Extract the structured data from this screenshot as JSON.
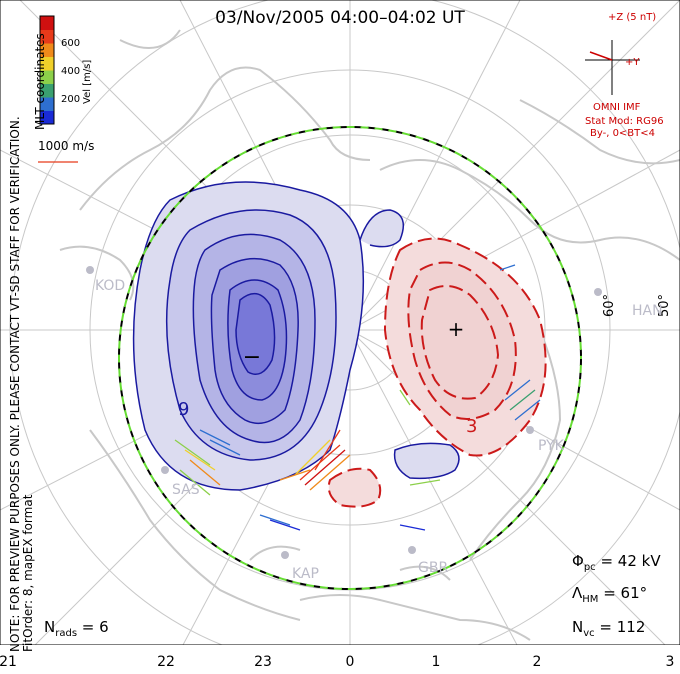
{
  "title": "03/Nov/2005 04:00–04:02 UT",
  "notice_lines": [
    "NOTE: FOR PREVIEW PURPOSES ONLY. PLEASE CONTACT VT-SD STAFF FOR VERIFICATION.",
    "FitOrder: 8, mapEX format"
  ],
  "coord_label": "MLT coordinates",
  "colorbar": {
    "label": "Vel [m/s]",
    "ticks": [
      "600",
      "400",
      "200"
    ],
    "colors": [
      "#1a2bd6",
      "#2e6fd0",
      "#3aa070",
      "#8cd04a",
      "#f0d02a",
      "#f08a1a",
      "#e83a1a",
      "#d01010"
    ]
  },
  "scale_vector_label": "1000 m/s",
  "imf": {
    "z_label": "+Z (5 nT)",
    "y_label": "+Y",
    "source": "OMNI IMF",
    "model": "Stat Mod: RG96",
    "conditions": "By-, 0<BT<4"
  },
  "stats": {
    "phi_symbol": "Φ",
    "phi_sub": "pc",
    "phi_value": " = 42 kV",
    "lambda_symbol": "Λ",
    "lambda_sub": "HM",
    "lambda_value": " = 61°",
    "nvc_symbol": "N",
    "nvc_sub": "vc",
    "nvc_value": " = 112",
    "nrads_symbol": "N",
    "nrads_sub": "rads",
    "nrads_value": " = 6"
  },
  "mlt_ticks": [
    "21",
    "22",
    "23",
    "0",
    "1",
    "2",
    "3"
  ],
  "lat_labels": [
    "60°",
    "50°"
  ],
  "stations": [
    "KOD",
    "HAN",
    "PYK",
    "SAS",
    "KAP",
    "GBR"
  ],
  "cell_markers": [
    "−",
    "+"
  ],
  "contour_labels": [
    "9",
    "3"
  ],
  "colors": {
    "negative_cell": "#1a1aa0",
    "positive_cell": "#cc1a1a",
    "grid": "#c8c8c8",
    "land": "#c8c8c8",
    "hmb_dash_a": "#000000",
    "hmb_dash_b": "#66dd33"
  }
}
